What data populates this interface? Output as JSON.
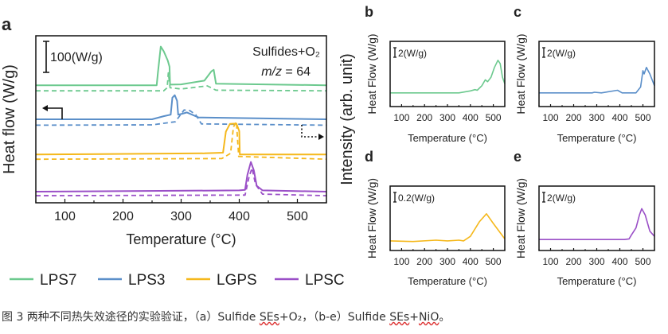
{
  "chart_data": [
    {
      "id": "a",
      "panel_label": "a",
      "type": "line",
      "xlabel": "Temperature (°C)",
      "ylabel": "Heat flow (W/g)",
      "right_ylabel": "Intensity (arb. unit)",
      "xlim": [
        50,
        550
      ],
      "xticks": [
        100,
        200,
        300,
        400,
        500
      ],
      "ylim": [
        0,
        540
      ],
      "scale_bar": "100(W/g)",
      "annotation_line1": "Sulfides+O₂",
      "annotation_line2_italic": "m/z",
      "annotation_line2_value": " = 64",
      "series": [
        {
          "name": "LPS7 heat flow",
          "color": "#6cc98e",
          "style": "solid",
          "points": [
            [
              50,
              380
            ],
            [
              258,
              380
            ],
            [
              260,
              420
            ],
            [
              265,
              505
            ],
            [
              270,
              490
            ],
            [
              277,
              460
            ],
            [
              280,
              440
            ],
            [
              281,
              382
            ],
            [
              300,
              383
            ],
            [
              340,
              395
            ],
            [
              352,
              425
            ],
            [
              356,
              430
            ],
            [
              360,
              385
            ],
            [
              550,
              380
            ]
          ]
        },
        {
          "name": "LPS7 m/z 64",
          "color": "#6cc98e",
          "style": "dashed",
          "points": [
            [
              50,
              362
            ],
            [
              270,
              362
            ],
            [
              276,
              372
            ],
            [
              278,
              420
            ],
            [
              281,
              372
            ],
            [
              300,
              368
            ],
            [
              345,
              378
            ],
            [
              360,
              364
            ],
            [
              550,
              362
            ]
          ]
        },
        {
          "name": "LPS3 heat flow",
          "color": "#5b8fc9",
          "style": "solid",
          "points": [
            [
              50,
              270
            ],
            [
              250,
              270
            ],
            [
              270,
              280
            ],
            [
              282,
              285
            ],
            [
              285,
              340
            ],
            [
              289,
              348
            ],
            [
              293,
              330
            ],
            [
              295,
              285
            ],
            [
              300,
              287
            ],
            [
              310,
              292
            ],
            [
              330,
              276
            ],
            [
              550,
              270
            ]
          ]
        },
        {
          "name": "LPS3 m/z 64",
          "color": "#5b8fc9",
          "style": "dashed",
          "points": [
            [
              50,
              251
            ],
            [
              250,
              252
            ],
            [
              290,
              262
            ],
            [
              305,
              300
            ],
            [
              315,
              298
            ],
            [
              325,
              285
            ],
            [
              335,
              255
            ],
            [
              550,
              251
            ]
          ]
        },
        {
          "name": "LGPS heat flow",
          "color": "#f5b81c",
          "style": "solid",
          "points": [
            [
              50,
              156
            ],
            [
              340,
              160
            ],
            [
              372,
              162
            ],
            [
              377,
              230
            ],
            [
              384,
              255
            ],
            [
              395,
              256
            ],
            [
              400,
              232
            ],
            [
              401,
              156
            ],
            [
              550,
              156
            ]
          ]
        },
        {
          "name": "LGPS m/z 64",
          "color": "#f5b81c",
          "style": "dashed",
          "points": [
            [
              50,
              141
            ],
            [
              370,
              143
            ],
            [
              385,
              160
            ],
            [
              390,
              245
            ],
            [
              395,
              262
            ],
            [
              399,
              150
            ],
            [
              550,
              141
            ]
          ]
        },
        {
          "name": "LPSC heat flow",
          "color": "#9a4fc7",
          "style": "solid",
          "points": [
            [
              50,
              36
            ],
            [
              400,
              40
            ],
            [
              410,
              42
            ],
            [
              414,
              90
            ],
            [
              420,
              132
            ],
            [
              425,
              105
            ],
            [
              430,
              55
            ],
            [
              440,
              40
            ],
            [
              550,
              36
            ]
          ]
        },
        {
          "name": "LPSC m/z 64",
          "color": "#9a4fc7",
          "style": "dashed",
          "points": [
            [
              50,
              23
            ],
            [
              410,
              25
            ],
            [
              417,
              85
            ],
            [
              422,
              112
            ],
            [
              428,
              60
            ],
            [
              440,
              28
            ],
            [
              550,
              23
            ]
          ]
        }
      ]
    },
    {
      "id": "b",
      "panel_label": "b",
      "type": "line",
      "xlabel": "Temperature (°C)",
      "ylabel": "Heat Flow (W/g)",
      "xlim": [
        50,
        550
      ],
      "xticks": [
        100,
        200,
        300,
        400,
        500
      ],
      "ylim": [
        0,
        1
      ],
      "scale_bar": "2(W/g)",
      "series": [
        {
          "name": "LPS7",
          "color": "#6cc98e",
          "points": [
            [
              50,
              0.21
            ],
            [
              350,
              0.21
            ],
            [
              400,
              0.24
            ],
            [
              420,
              0.26
            ],
            [
              430,
              0.25
            ],
            [
              450,
              0.32
            ],
            [
              465,
              0.41
            ],
            [
              475,
              0.38
            ],
            [
              490,
              0.45
            ],
            [
              505,
              0.6
            ],
            [
              520,
              0.71
            ],
            [
              530,
              0.66
            ],
            [
              540,
              0.45
            ],
            [
              550,
              0.35
            ]
          ]
        }
      ]
    },
    {
      "id": "c",
      "panel_label": "c",
      "type": "line",
      "xlabel": "Temperature (°C)",
      "ylabel": "Heat Flow (W/g)",
      "xlim": [
        50,
        550
      ],
      "xticks": [
        100,
        200,
        300,
        400,
        500
      ],
      "ylim": [
        0,
        1
      ],
      "scale_bar": "2(W/g)",
      "series": [
        {
          "name": "LPS3",
          "color": "#5b8fc9",
          "points": [
            [
              50,
              0.21
            ],
            [
              280,
              0.21
            ],
            [
              290,
              0.22
            ],
            [
              320,
              0.21
            ],
            [
              390,
              0.25
            ],
            [
              410,
              0.21
            ],
            [
              470,
              0.21
            ],
            [
              490,
              0.3
            ],
            [
              500,
              0.55
            ],
            [
              505,
              0.5
            ],
            [
              515,
              0.6
            ],
            [
              530,
              0.5
            ],
            [
              550,
              0.32
            ]
          ]
        }
      ]
    },
    {
      "id": "d",
      "panel_label": "d",
      "type": "line",
      "xlabel": "Temperature (°C)",
      "ylabel": "Heat Flow (W/g)",
      "xlim": [
        50,
        550
      ],
      "xticks": [
        100,
        200,
        300,
        400,
        500
      ],
      "ylim": [
        0,
        1
      ],
      "scale_bar": "0.2(W/g)",
      "series": [
        {
          "name": "LGPS",
          "color": "#f5b81c",
          "points": [
            [
              50,
              0.15
            ],
            [
              150,
              0.14
            ],
            [
              250,
              0.16
            ],
            [
              300,
              0.15
            ],
            [
              350,
              0.16
            ],
            [
              370,
              0.15
            ],
            [
              400,
              0.22
            ],
            [
              440,
              0.45
            ],
            [
              470,
              0.57
            ],
            [
              500,
              0.42
            ],
            [
              550,
              0.18
            ]
          ]
        }
      ]
    },
    {
      "id": "e",
      "panel_label": "e",
      "type": "line",
      "xlabel": "Temperature (°C)",
      "ylabel": "Heat Flow (W/g)",
      "xlim": [
        50,
        550
      ],
      "xticks": [
        100,
        200,
        300,
        400,
        500
      ],
      "ylim": [
        0,
        1
      ],
      "scale_bar": "2(W/g)",
      "series": [
        {
          "name": "LPSC",
          "color": "#9a4fc7",
          "points": [
            [
              50,
              0.17
            ],
            [
              420,
              0.17
            ],
            [
              440,
              0.18
            ],
            [
              450,
              0.24
            ],
            [
              470,
              0.35
            ],
            [
              485,
              0.55
            ],
            [
              495,
              0.65
            ],
            [
              510,
              0.55
            ],
            [
              530,
              0.3
            ],
            [
              550,
              0.22
            ]
          ]
        }
      ]
    }
  ],
  "legend": [
    {
      "label": "LPS7",
      "color": "#6cc98e"
    },
    {
      "label": "LPS3",
      "color": "#5b8fc9"
    },
    {
      "label": "LGPS",
      "color": "#f5b81c"
    },
    {
      "label": "LPSC",
      "color": "#9a4fc7"
    }
  ],
  "caption": {
    "prefix": "图 3 两种不同热失效途径的实验验证，（a）Sulfide ",
    "ses1": "SEs",
    "mid": "+O₂，（b-e）Sulfide ",
    "ses2": "SEs",
    "plus": "+",
    "nio": "NiO",
    "end": "。"
  }
}
